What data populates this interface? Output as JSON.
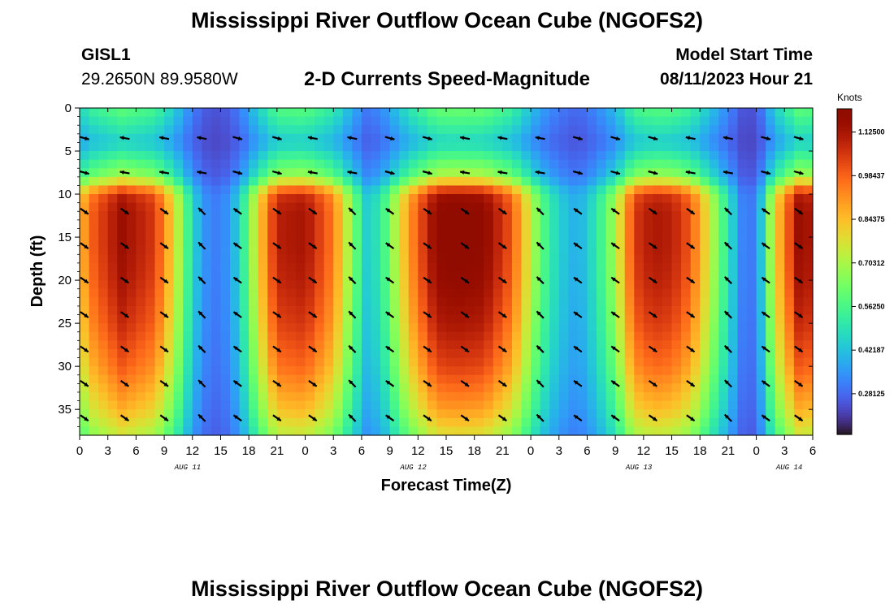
{
  "header": {
    "title": "Mississippi River Outflow Ocean Cube (NGOFS2)",
    "station_id": "GISL1",
    "station_coords": "29.2650N  89.9580W",
    "subtitle": "2-D Currents Speed-Magnitude",
    "model_start_label": "Model Start Time",
    "model_start_value": "08/11/2023 Hour 21"
  },
  "footer": {
    "title": "Mississippi River Outflow Ocean Cube (NGOFS2)"
  },
  "chart_data": {
    "type": "heatmap",
    "title": "2-D Currents Speed-Magnitude",
    "xlabel": "Forecast Time(Z)",
    "ylabel": "Depth (ft)",
    "x_tick_labels": [
      "0",
      "3",
      "6",
      "9",
      "12",
      "15",
      "18",
      "21",
      "0",
      "3",
      "6",
      "9",
      "12",
      "15",
      "18",
      "21",
      "0",
      "3",
      "6",
      "9",
      "12",
      "15",
      "18",
      "21",
      "0",
      "3",
      "6"
    ],
    "x_tick_hours": [
      0,
      3,
      6,
      9,
      12,
      15,
      18,
      21,
      24,
      27,
      30,
      33,
      36,
      39,
      42,
      45,
      48,
      51,
      54,
      57,
      60,
      63,
      66,
      69,
      72,
      75,
      78
    ],
    "date_labels": [
      {
        "label": "AUG 11",
        "hour": 11.5
      },
      {
        "label": "AUG 12",
        "hour": 35.5
      },
      {
        "label": "AUG 13",
        "hour": 59.5
      },
      {
        "label": "AUG 14",
        "hour": 75.5
      }
    ],
    "y_ticks": [
      0,
      5,
      10,
      15,
      20,
      25,
      30,
      35
    ],
    "y_tick_labels": [
      "0",
      "5",
      "10",
      "15",
      "20",
      "25",
      "30",
      "35"
    ],
    "xlim": [
      0,
      78
    ],
    "ylim": [
      0,
      38
    ],
    "y_inverted": true,
    "colorbar": {
      "unit_label": "Knots",
      "range": [
        0.15,
        1.2
      ],
      "tick_values": [
        1.125,
        0.984375,
        0.84375,
        0.703125,
        0.5625,
        0.421875,
        0.28125
      ],
      "tick_labels": [
        "1.12500",
        "0.98437",
        "0.84375",
        "0.70312",
        "0.56250",
        "0.42187",
        "0.28125"
      ],
      "colormap": "turbo"
    },
    "speed_profile": {
      "depth_shape_ft": [
        0,
        4,
        8,
        10,
        12,
        16,
        20,
        25,
        30,
        35,
        38
      ],
      "depth_factor": [
        0.45,
        0.3,
        0.55,
        0.95,
        1.0,
        1.0,
        0.98,
        0.93,
        0.85,
        0.72,
        0.6
      ],
      "time_hours": [
        0,
        1.5,
        4.5,
        8,
        10,
        11.5,
        13,
        15,
        17,
        19,
        21,
        24,
        27,
        29,
        30.5,
        32,
        35,
        38,
        40,
        43,
        46,
        49,
        51,
        53,
        55,
        57,
        59,
        61,
        63,
        65,
        67,
        69,
        70.5,
        72,
        74,
        76.5,
        78
      ],
      "time_intensity": [
        0.65,
        0.8,
        0.95,
        0.85,
        0.6,
        0.35,
        0.15,
        0.1,
        0.25,
        0.6,
        0.9,
        0.93,
        0.75,
        0.45,
        0.25,
        0.3,
        0.7,
        0.98,
        1.0,
        0.98,
        0.8,
        0.4,
        0.25,
        0.18,
        0.3,
        0.5,
        0.85,
        0.92,
        0.9,
        0.8,
        0.55,
        0.3,
        0.12,
        0.1,
        0.6,
        0.95,
        0.92
      ]
    },
    "arrow_times": [
      0.5,
      4.8,
      9,
      13,
      16.8,
      21,
      24.8,
      29,
      33,
      37,
      41,
      45,
      49,
      53,
      57,
      61,
      65,
      69,
      73,
      76.5
    ],
    "arrow_depths": [
      3.5,
      7.5,
      12,
      16,
      20,
      24,
      28,
      32,
      36
    ]
  }
}
